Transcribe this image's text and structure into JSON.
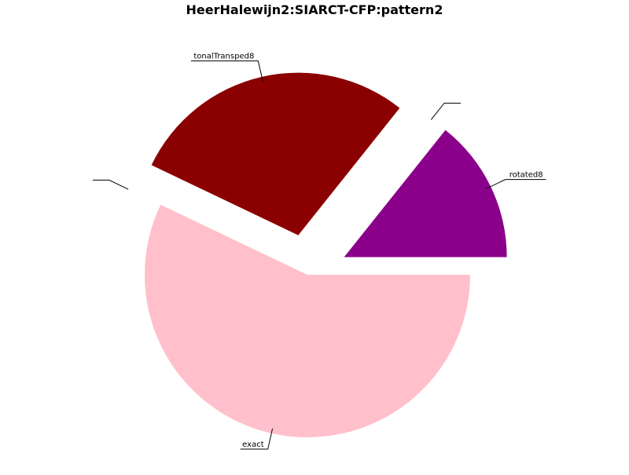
{
  "chart_data": {
    "type": "pie",
    "title": "HeerHalewijn2:SIARCT-CFP:pattern2",
    "slices": [
      {
        "label": "rotated8",
        "value": 14.3,
        "color": "#8b008b",
        "explode": 0.25
      },
      {
        "label": "",
        "value": 0.0,
        "color": "#ffffff",
        "explode": 0.25
      },
      {
        "label": "tonalTransped8",
        "value": 28.6,
        "color": "#8b0000",
        "explode": 0.25
      },
      {
        "label": "",
        "value": 0.0,
        "color": "#ffffff",
        "explode": 0.25
      },
      {
        "label": "exact",
        "value": 57.1,
        "color": "#ffc0cb",
        "explode": 0.0
      }
    ],
    "start_angle_deg": 0,
    "direction": "counterclockwise",
    "legend": "none"
  }
}
